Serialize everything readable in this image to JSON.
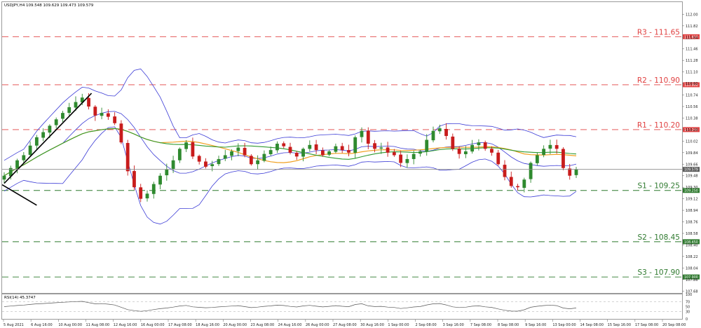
{
  "chart_data": {
    "type": "candlestick",
    "symbol_header": "USDJPY,H4  109.548 109.629 109.473 109.579",
    "price_axis": {
      "range": [
        107.65,
        112.19
      ],
      "ticks": [
        "112.00",
        "111.82",
        "111.64",
        "111.46",
        "111.28",
        "111.10",
        "110.92",
        "110.74",
        "110.56",
        "110.38",
        "110.20",
        "110.02",
        "109.84",
        "109.66",
        "109.48",
        "109.30",
        "109.12",
        "108.94",
        "108.76",
        "108.58",
        "108.40",
        "108.22",
        "108.04",
        "107.86",
        "107.68"
      ]
    },
    "current_price": {
      "value": 109.579,
      "label": "109.579"
    },
    "levels": [
      {
        "name": "R3",
        "value": 111.65,
        "label": "R3 - 111.65",
        "tag": "111.650",
        "color": "#e04040"
      },
      {
        "name": "R2",
        "value": 110.9,
        "label": "R2 - 110.90",
        "tag": "110.900",
        "color": "#e04040"
      },
      {
        "name": "R1",
        "value": 110.2,
        "label": "R1 - 110.20",
        "tag": "110.200",
        "color": "#e04040"
      },
      {
        "name": "S1",
        "value": 109.25,
        "label": "S1 - 109.25",
        "tag": "109.250",
        "color": "#2f7a2f"
      },
      {
        "name": "S2",
        "value": 108.45,
        "label": "S2 - 108.45",
        "tag": "108.450",
        "color": "#2f7a2f"
      },
      {
        "name": "S3",
        "value": 107.9,
        "label": "S3 - 107.90",
        "tag": "107.900",
        "color": "#2f7a2f"
      }
    ],
    "x_labels": [
      "5 Aug 2021",
      "6 Aug 16:00",
      "10 Aug 00:00",
      "11 Aug 08:00",
      "12 Aug 16:00",
      "16 Aug 00:00",
      "17 Aug 08:00",
      "18 Aug 16:00",
      "20 Aug 00:00",
      "23 Aug 08:00",
      "24 Aug 16:00",
      "26 Aug 00:00",
      "27 Aug 08:00",
      "30 Aug 16:00",
      "1 Sep 00:00",
      "2 Sep 08:00",
      "3 Sep 16:00",
      "7 Sep 08:00",
      "8 Sep 08:00",
      "9 Sep 16:00",
      "13 Sep 00:00",
      "14 Sep 08:00",
      "15 Sep 16:00",
      "17 Sep 08:00",
      "20 Sep 08:00"
    ],
    "close_path": [
      109.48,
      109.6,
      109.72,
      109.8,
      109.95,
      110.08,
      110.16,
      110.26,
      110.36,
      110.46,
      110.55,
      110.63,
      110.7,
      110.56,
      110.42,
      110.46,
      110.4,
      110.3,
      110.0,
      109.55,
      109.3,
      109.12,
      109.2,
      109.35,
      109.48,
      109.58,
      109.72,
      109.9,
      110.0,
      109.78,
      109.7,
      109.62,
      109.66,
      109.74,
      109.8,
      109.86,
      109.92,
      109.8,
      109.66,
      109.72,
      109.82,
      109.88,
      109.98,
      109.94,
      109.84,
      109.78,
      109.9,
      109.96,
      109.88,
      109.8,
      109.86,
      109.94,
      109.88,
      109.84,
      110.08,
      110.18,
      109.98,
      109.9,
      109.92,
      109.84,
      109.8,
      109.68,
      109.74,
      109.82,
      109.86,
      110.04,
      110.18,
      110.22,
      110.1,
      109.9,
      109.82,
      109.86,
      109.96,
      110.0,
      109.9,
      109.84,
      109.66,
      109.46,
      109.32,
      109.3,
      109.42,
      109.68,
      109.8,
      109.9,
      109.96,
      109.9,
      109.6,
      109.48,
      109.579
    ],
    "indicators": {
      "bollinger_color": "#3b3bd6",
      "ma_fast_color": "#f0a020",
      "ma_slow_color": "#2f9a2f",
      "trendline_color": "#000000"
    },
    "rsi": {
      "label": "RSI(14) 45.3747",
      "ticks": [
        "100",
        "70",
        "50",
        "30",
        "0"
      ]
    },
    "colors": {
      "bull": "#2f8a2f",
      "bear": "#c81c1c",
      "current": "#888888",
      "grid": "#d9d9d9"
    }
  }
}
